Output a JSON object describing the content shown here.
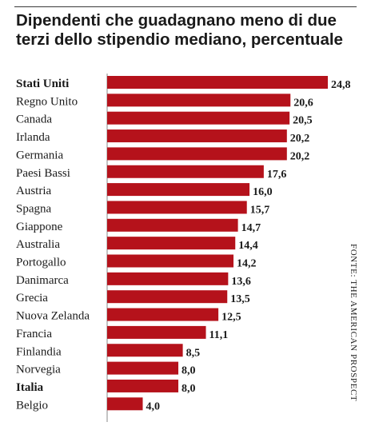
{
  "chart_data": {
    "type": "bar",
    "orientation": "horizontal",
    "title": "Dipendenti che guadagnano meno di due terzi dello stipendio mediano, percentuale",
    "source": "FONTE: THE AMERICAN PROSPECT",
    "bar_color": "#b5121b",
    "categories": [
      "Stati Uniti",
      "Regno Unito",
      "Canada",
      "Irlanda",
      "Germania",
      "Paesi Bassi",
      "Austria",
      "Spagna",
      "Giappone",
      "Australia",
      "Portogallo",
      "Danimarca",
      "Grecia",
      "Nuova Zelanda",
      "Francia",
      "Finlandia",
      "Norvegia",
      "Italia",
      "Belgio"
    ],
    "values": [
      24.8,
      20.6,
      20.5,
      20.2,
      20.2,
      17.6,
      16.0,
      15.7,
      14.7,
      14.4,
      14.2,
      13.6,
      13.5,
      12.5,
      11.1,
      8.5,
      8.0,
      8.0,
      4.0
    ],
    "value_labels": [
      "24,8",
      "20,6",
      "20,5",
      "20,2",
      "20,2",
      "17,6",
      "16,0",
      "15,7",
      "14,7",
      "14,4",
      "14,2",
      "13,6",
      "13,5",
      "12,5",
      "11,1",
      "8,5",
      "8,0",
      "8,0",
      "4,0"
    ],
    "highlighted": [
      "Stati Uniti",
      "Italia"
    ]
  }
}
